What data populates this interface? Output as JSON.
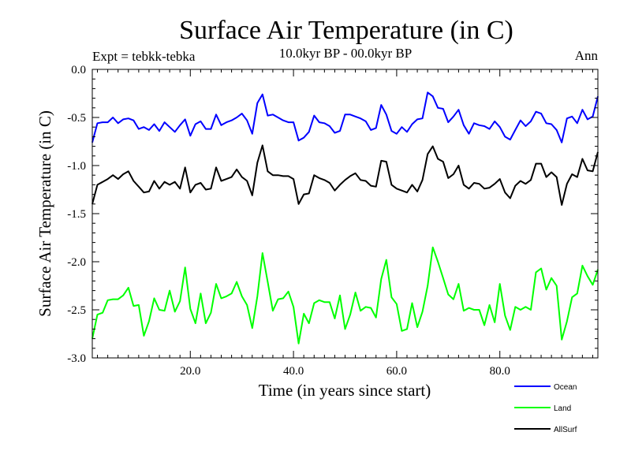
{
  "chart_data": {
    "type": "line",
    "title": "Surface Air Temperature (in C)",
    "subtitle": "10.0kyr BP - 00.0kyr BP",
    "experiment": "Expt = tebkk-tebka",
    "season": "Ann",
    "xlabel": "Time (in years since start)",
    "ylabel": "Surface Air Temperature (in C)",
    "xlim": [
      1,
      99
    ],
    "ylim": [
      -3.0,
      0.0
    ],
    "x_ticks": [
      20,
      40,
      60,
      80
    ],
    "x_tick_labels": [
      "20.0",
      "40.0",
      "60.0",
      "80.0"
    ],
    "y_ticks": [
      0.0,
      -0.5,
      -1.0,
      -1.5,
      -2.0,
      -2.5,
      -3.0
    ],
    "y_tick_labels": [
      "0.0",
      "-0.5",
      "-1.0",
      "-1.5",
      "-2.0",
      "-2.5",
      "-3.0"
    ],
    "grid": false,
    "legend_position": "bottom-right",
    "series": [
      {
        "name": "Ocean",
        "color": "#0000ff",
        "values": [
          -0.76,
          -0.56,
          -0.55,
          -0.55,
          -0.5,
          -0.56,
          -0.52,
          -0.51,
          -0.53,
          -0.62,
          -0.6,
          -0.63,
          -0.57,
          -0.64,
          -0.55,
          -0.6,
          -0.65,
          -0.58,
          -0.52,
          -0.69,
          -0.57,
          -0.54,
          -0.62,
          -0.62,
          -0.47,
          -0.58,
          -0.55,
          -0.53,
          -0.5,
          -0.46,
          -0.53,
          -0.67,
          -0.35,
          -0.26,
          -0.48,
          -0.47,
          -0.5,
          -0.53,
          -0.55,
          -0.55,
          -0.74,
          -0.71,
          -0.65,
          -0.48,
          -0.55,
          -0.56,
          -0.59,
          -0.66,
          -0.64,
          -0.47,
          -0.47,
          -0.49,
          -0.51,
          -0.54,
          -0.63,
          -0.61,
          -0.37,
          -0.47,
          -0.64,
          -0.67,
          -0.6,
          -0.65,
          -0.57,
          -0.52,
          -0.51,
          -0.24,
          -0.28,
          -0.4,
          -0.41,
          -0.55,
          -0.49,
          -0.42,
          -0.58,
          -0.67,
          -0.56,
          -0.58,
          -0.59,
          -0.62,
          -0.54,
          -0.6,
          -0.7,
          -0.73,
          -0.63,
          -0.53,
          -0.59,
          -0.54,
          -0.44,
          -0.46,
          -0.56,
          -0.57,
          -0.63,
          -0.76,
          -0.51,
          -0.49,
          -0.56,
          -0.42,
          -0.52,
          -0.49,
          -0.28
        ]
      },
      {
        "name": "Land",
        "color": "#00ff00",
        "values": [
          -2.8,
          -2.55,
          -2.53,
          -2.4,
          -2.39,
          -2.39,
          -2.35,
          -2.27,
          -2.46,
          -2.45,
          -2.77,
          -2.62,
          -2.38,
          -2.5,
          -2.51,
          -2.3,
          -2.52,
          -2.41,
          -2.06,
          -2.49,
          -2.64,
          -2.33,
          -2.64,
          -2.53,
          -2.23,
          -2.38,
          -2.36,
          -2.33,
          -2.21,
          -2.36,
          -2.45,
          -2.69,
          -2.36,
          -1.91,
          -2.21,
          -2.51,
          -2.39,
          -2.38,
          -2.31,
          -2.47,
          -2.85,
          -2.54,
          -2.64,
          -2.43,
          -2.4,
          -2.42,
          -2.42,
          -2.59,
          -2.35,
          -2.7,
          -2.55,
          -2.32,
          -2.51,
          -2.47,
          -2.48,
          -2.58,
          -2.18,
          -1.98,
          -2.37,
          -2.44,
          -2.72,
          -2.7,
          -2.43,
          -2.68,
          -2.52,
          -2.25,
          -1.85,
          -2.0,
          -2.17,
          -2.34,
          -2.39,
          -2.23,
          -2.51,
          -2.48,
          -2.5,
          -2.5,
          -2.66,
          -2.45,
          -2.63,
          -2.23,
          -2.56,
          -2.71,
          -2.47,
          -2.5,
          -2.47,
          -2.5,
          -2.11,
          -2.07,
          -2.29,
          -2.17,
          -2.25,
          -2.81,
          -2.62,
          -2.37,
          -2.33,
          -2.04,
          -2.15,
          -2.24,
          -2.08
        ]
      },
      {
        "name": "AllSurf",
        "color": "#000000",
        "values": [
          -1.4,
          -1.2,
          -1.17,
          -1.14,
          -1.1,
          -1.14,
          -1.09,
          -1.06,
          -1.16,
          -1.22,
          -1.28,
          -1.27,
          -1.16,
          -1.24,
          -1.17,
          -1.2,
          -1.17,
          -1.24,
          -1.02,
          -1.28,
          -1.2,
          -1.18,
          -1.25,
          -1.24,
          -1.02,
          -1.16,
          -1.14,
          -1.12,
          -1.04,
          -1.12,
          -1.16,
          -1.31,
          -0.97,
          -0.79,
          -1.06,
          -1.1,
          -1.1,
          -1.11,
          -1.11,
          -1.14,
          -1.4,
          -1.3,
          -1.29,
          -1.1,
          -1.13,
          -1.15,
          -1.18,
          -1.26,
          -1.2,
          -1.15,
          -1.11,
          -1.08,
          -1.15,
          -1.16,
          -1.21,
          -1.22,
          -0.95,
          -0.96,
          -1.2,
          -1.24,
          -1.26,
          -1.28,
          -1.2,
          -1.27,
          -1.15,
          -0.88,
          -0.8,
          -0.93,
          -0.96,
          -1.13,
          -1.09,
          -1.0,
          -1.2,
          -1.24,
          -1.18,
          -1.19,
          -1.24,
          -1.23,
          -1.19,
          -1.14,
          -1.28,
          -1.34,
          -1.21,
          -1.16,
          -1.19,
          -1.15,
          -0.98,
          -0.98,
          -1.12,
          -1.07,
          -1.12,
          -1.41,
          -1.19,
          -1.09,
          -1.12,
          -0.93,
          -1.05,
          -1.06,
          -0.86
        ]
      }
    ]
  }
}
